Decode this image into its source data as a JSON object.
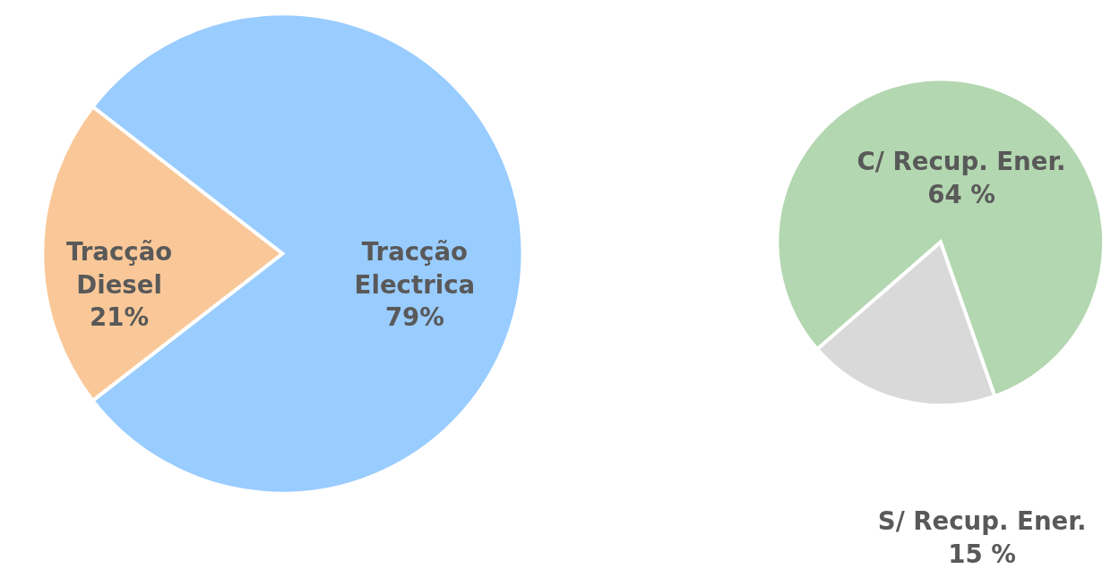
{
  "chart_data": [
    {
      "type": "pie",
      "categories": [
        "Tracção Diesel",
        "Tracção Electrica"
      ],
      "values": [
        21,
        79
      ],
      "value_labels": [
        "21%",
        "79%"
      ],
      "colors": [
        "#fac898",
        "#99ccff"
      ]
    },
    {
      "type": "pie",
      "categories": [
        "C/ Recup. Ener.",
        "S/ Recup. Ener."
      ],
      "values": [
        64,
        15
      ],
      "value_labels": [
        "64 %",
        "15 %"
      ],
      "colors": [
        "#b3d7b0",
        "#d9d9d9"
      ]
    }
  ]
}
